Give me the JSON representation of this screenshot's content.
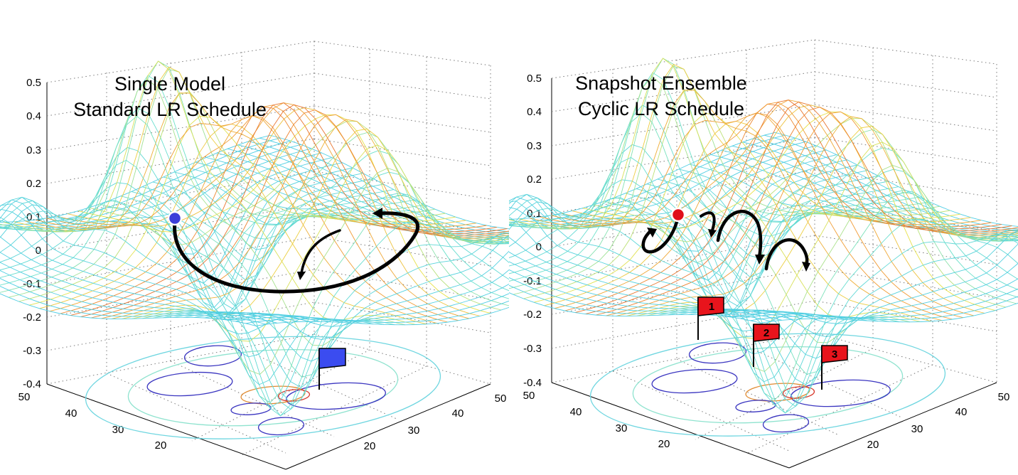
{
  "panels": [
    {
      "id": "left",
      "title_lines": [
        "Single Model",
        "Standard LR Schedule"
      ],
      "z_ticks": [
        "0.5",
        "0.4",
        "0.3",
        "0.2",
        "0.1",
        "0",
        "-0.1",
        "-0.2",
        "-0.3",
        "-0.4"
      ],
      "y_ticks": [
        "50",
        "40",
        "30",
        "20"
      ],
      "x_ticks": [
        "50",
        "40",
        "30",
        "20"
      ],
      "marker_color": "#3b3fd9",
      "flag_color": "#3b4cf0",
      "flags": [
        ""
      ]
    },
    {
      "id": "right",
      "title_lines": [
        "Snapshot Ensemble",
        "Cyclic LR Schedule"
      ],
      "z_ticks": [
        "0.5",
        "0.4",
        "0.3",
        "0.2",
        "0.1",
        "0",
        "-0.1",
        "-0.2",
        "-0.3",
        "-0.4"
      ],
      "y_ticks": [
        "50",
        "40",
        "30",
        "20"
      ],
      "x_ticks": [
        "50",
        "40",
        "30",
        "20"
      ],
      "marker_color": "#e0101a",
      "flag_color": "#e8141c",
      "flags": [
        "1",
        "2",
        "3"
      ]
    }
  ],
  "colors": {
    "surface_low": "#5a2fd0",
    "surface_mid": "#4fd3e6",
    "surface_high": "#d7372a",
    "path": "#000000"
  }
}
